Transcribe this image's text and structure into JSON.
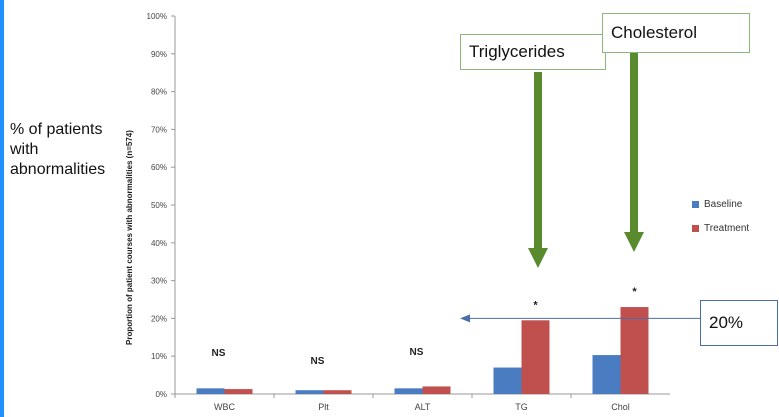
{
  "side_label": [
    "% of patients",
    "with",
    "abnormalities"
  ],
  "callouts": {
    "triglycerides": "Triglycerides",
    "cholesterol": "Cholesterol",
    "twenty": "20%"
  },
  "chart_data": {
    "type": "bar",
    "ylabel": "Proportion of patient courses with abnormalities (n=574)",
    "ylim": [
      0,
      100
    ],
    "yticks": [
      "0%",
      "10%",
      "20%",
      "30%",
      "40%",
      "50%",
      "60%",
      "70%",
      "80%",
      "90%",
      "100%"
    ],
    "categories": [
      "WBC",
      "Plt",
      "ALT",
      "TG",
      "Chol"
    ],
    "series": [
      {
        "name": "Baseline",
        "color": "#4a7cc2",
        "values": [
          1.5,
          1.0,
          1.5,
          7.0,
          10.3
        ]
      },
      {
        "name": "Treatment",
        "color": "#c0504d",
        "values": [
          1.3,
          1.0,
          2.0,
          19.5,
          23.0
        ]
      }
    ],
    "annotations": [
      "NS",
      "NS",
      "NS",
      "*",
      "*"
    ],
    "legend_position": "right",
    "grid": false,
    "reference_line_value": 20
  }
}
